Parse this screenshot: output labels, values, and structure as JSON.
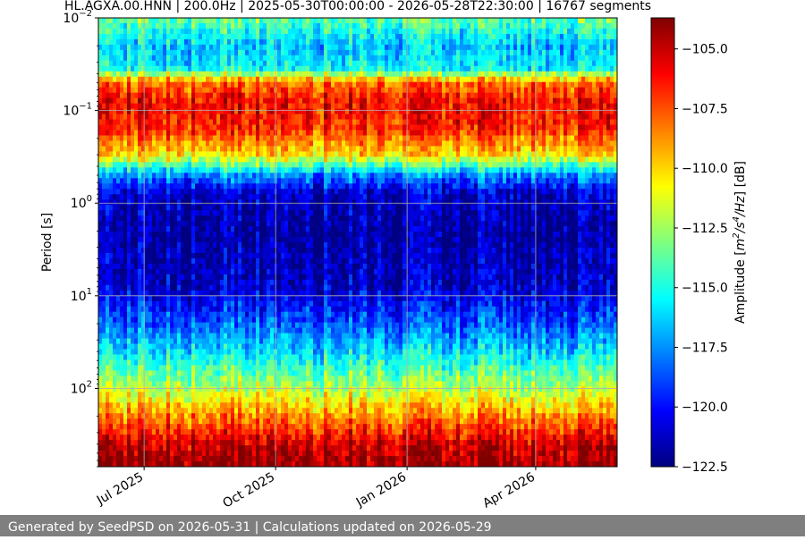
{
  "chart_data": {
    "type": "heatmap",
    "title": "HL.AGXA.00.HNN | 200.0Hz | 2025-05-30T00:00:00 - 2026-05-28T22:30:00 | 16767 segments",
    "ylabel": "Period [s]",
    "y_scale": "log",
    "y_inverted": true,
    "ylim": [
      0.01,
      700
    ],
    "y_ticks": [
      {
        "value": 0.01,
        "base": "10",
        "exp": "−2"
      },
      {
        "value": 0.1,
        "base": "10",
        "exp": "−1"
      },
      {
        "value": 1,
        "base": "10",
        "exp": "0"
      },
      {
        "value": 10,
        "base": "10",
        "exp": "1"
      },
      {
        "value": 100,
        "base": "10",
        "exp": "2"
      }
    ],
    "x_range": [
      "2025-05-30",
      "2026-05-28"
    ],
    "x_ticks": [
      {
        "date": "2025-07-01",
        "label": "Jul 2025"
      },
      {
        "date": "2025-10-01",
        "label": "Oct 2025"
      },
      {
        "date": "2026-01-01",
        "label": "Jan 2026"
      },
      {
        "date": "2026-04-01",
        "label": "Apr 2026"
      }
    ],
    "grid": true,
    "colormap": "jet",
    "colorbar": {
      "label_prefix": "Amplitude [",
      "label_suffix": "] [dB]",
      "unit_parts": [
        {
          "t": "m",
          "sup": false
        },
        {
          "t": "2",
          "sup": true
        },
        {
          "t": "/s",
          "sup": false
        },
        {
          "t": "4",
          "sup": true
        },
        {
          "t": "/Hz",
          "sup": false
        }
      ],
      "range": [
        -122.5,
        -103.7
      ],
      "ticks": [
        -105.0,
        -107.5,
        -110.0,
        -112.5,
        -115.0,
        -117.5,
        -120.0,
        -122.5
      ],
      "tick_labels": [
        "−105.0",
        "−107.5",
        "−110.0",
        "−112.5",
        "−115.0",
        "−117.5",
        "−120.0",
        "−122.5"
      ]
    },
    "period_profile": [
      {
        "period": 0.01,
        "db": -113.5
      },
      {
        "period": 0.02,
        "db": -116.5
      },
      {
        "period": 0.035,
        "db": -115.5
      },
      {
        "period": 0.05,
        "db": -108.0
      },
      {
        "period": 0.08,
        "db": -106.0
      },
      {
        "period": 0.15,
        "db": -106.5
      },
      {
        "period": 0.3,
        "db": -110.0
      },
      {
        "period": 0.5,
        "db": -117.5
      },
      {
        "period": 0.8,
        "db": -121.0
      },
      {
        "period": 2.0,
        "db": -121.8
      },
      {
        "period": 8.0,
        "db": -121.0
      },
      {
        "period": 20.0,
        "db": -118.5
      },
      {
        "period": 50.0,
        "db": -115.0
      },
      {
        "period": 100.0,
        "db": -112.0
      },
      {
        "period": 200.0,
        "db": -108.5
      },
      {
        "period": 400.0,
        "db": -105.0
      },
      {
        "period": 700.0,
        "db": -104.0
      }
    ]
  },
  "footer": {
    "text": "Generated by SeedPSD on 2026-05-31 | Calculations updated on 2026-05-29"
  }
}
